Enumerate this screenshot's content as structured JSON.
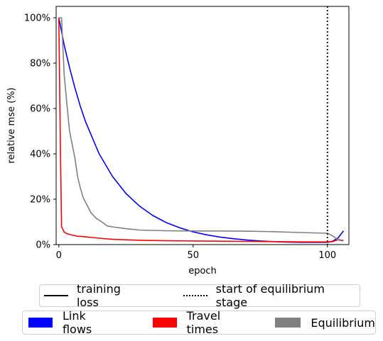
{
  "chart_data": {
    "type": "line",
    "xlabel": "epoch",
    "ylabel": "relative mse (%)",
    "xlim": [
      -1,
      108
    ],
    "ylim": [
      0,
      105
    ],
    "xticks": [
      0,
      50,
      100
    ],
    "yticks": [
      0,
      20,
      40,
      60,
      80,
      100
    ],
    "ytick_labels": [
      "0%",
      "20%",
      "40%",
      "60%",
      "80%",
      "100%"
    ],
    "vline": {
      "x": 100,
      "style": "dotted",
      "color": "#000000"
    },
    "grid": false,
    "series": [
      {
        "name": "Link flows",
        "color": "#0000ff",
        "x": [
          0,
          2,
          4,
          6,
          8,
          10,
          15,
          20,
          25,
          30,
          35,
          40,
          45,
          50,
          55,
          60,
          65,
          70,
          75,
          80,
          85,
          90,
          95,
          100,
          102,
          104,
          106
        ],
        "y": [
          100,
          88,
          78,
          69,
          61,
          54,
          40,
          30,
          22.5,
          17,
          12.8,
          9.7,
          7.4,
          5.6,
          4.3,
          3.3,
          2.6,
          2.0,
          1.6,
          1.3,
          1.1,
          1.0,
          1.0,
          1.0,
          1.5,
          3.0,
          6.0
        ]
      },
      {
        "name": "Travel times",
        "color": "#ff0000",
        "x": [
          0,
          0.5,
          1,
          2,
          3,
          5,
          7,
          10,
          15,
          20,
          30,
          40,
          50,
          60,
          70,
          80,
          90,
          100,
          102,
          104,
          106
        ],
        "y": [
          100,
          50,
          8,
          5.5,
          4.8,
          4.2,
          3.7,
          3.4,
          2.8,
          2.3,
          1.9,
          1.7,
          1.6,
          1.5,
          1.4,
          1.3,
          1.2,
          1.2,
          1.3,
          2.2,
          1.8
        ]
      },
      {
        "name": "Equilibrium",
        "color": "#808080",
        "x": [
          0,
          1,
          2,
          3,
          4,
          5,
          6,
          7,
          8,
          9,
          10,
          12,
          14,
          16,
          18,
          20,
          25,
          30,
          40,
          50,
          60,
          70,
          80,
          90,
          100,
          102,
          104,
          106
        ],
        "y": [
          100,
          100,
          75,
          62,
          50,
          44,
          38,
          30,
          25,
          21,
          18.5,
          14,
          11.5,
          10,
          8.2,
          7.8,
          7,
          6.4,
          6.1,
          6,
          6,
          5.9,
          5.7,
          5.3,
          5.0,
          3.8,
          2.0,
          1.6
        ]
      }
    ]
  },
  "legend_top": {
    "training_loss": "training loss",
    "equilibrium_stage": "start of equilibrium stage"
  },
  "legend_bottom": {
    "link_flows": "Link flows",
    "travel_times": "Travel times",
    "equilibrium": "Equilibrium"
  }
}
